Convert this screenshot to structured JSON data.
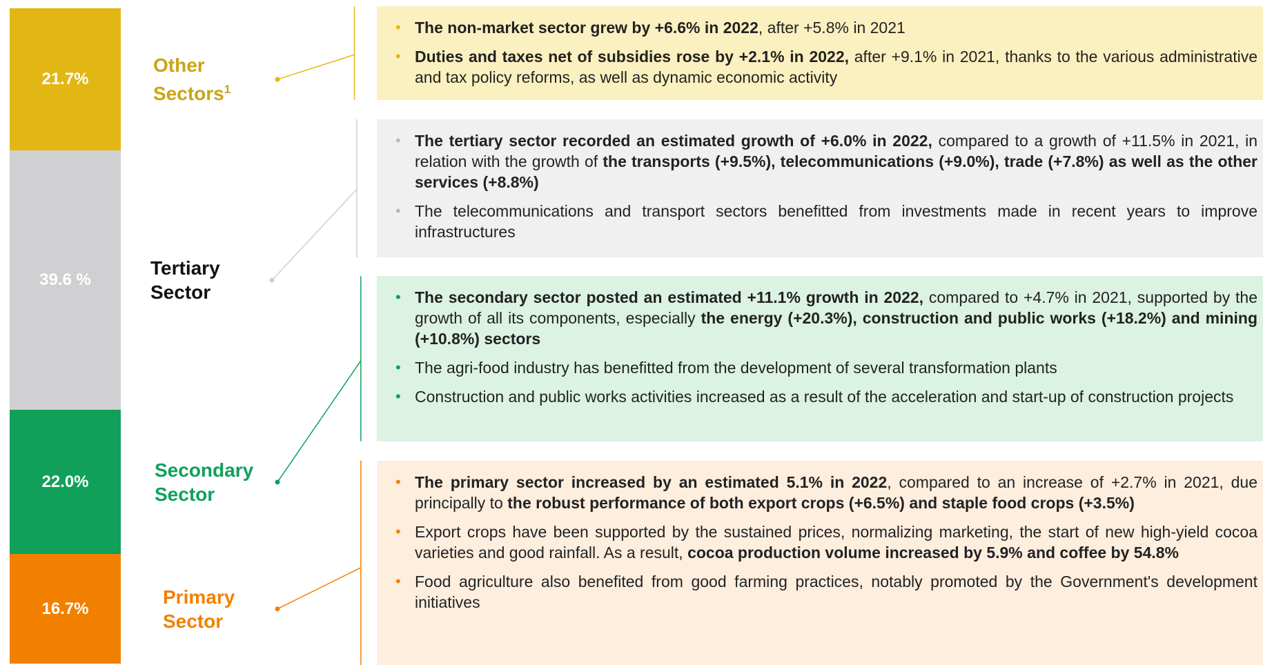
{
  "sectors": [
    {
      "name": "Other Sectors",
      "footnote": "1",
      "value": 21.7,
      "value_label": "21.7%",
      "color": "#e2b714",
      "label_color": "#c9a415",
      "panel_color": "#fbf0bf",
      "bullet_color": "#e2b714",
      "bullets": [
        [
          {
            "text": "The non-market sector grew by +6.6% in 2022",
            "bold": true
          },
          {
            "text": ", after +5.8% in 2021",
            "bold": false
          }
        ],
        [
          {
            "text": "Duties and taxes net of subsidies rose by +2.1% in 2022,",
            "bold": true
          },
          {
            "text": " after +9.1% in 2021, thanks to the various administrative and tax policy reforms, as well as dynamic economic activity",
            "bold": false
          }
        ]
      ]
    },
    {
      "name": "Tertiary Sector",
      "value": 39.6,
      "value_label": "39.6 %",
      "color": "#d0d0d2",
      "label_color": "#111111",
      "panel_color": "#f0f0f0",
      "bullet_color": "#b9b9b9",
      "bullets": [
        [
          {
            "text": "The tertiary sector recorded an estimated growth of +6.0% in 2022,",
            "bold": true
          },
          {
            "text": " compared to a growth of +11.5% in 2021, in relation with the growth of ",
            "bold": false
          },
          {
            "text": "the transports (+9.5%), telecommunications (+9.0%), trade (+7.8%) as well as the other services (+8.8%)",
            "bold": true
          }
        ],
        [
          {
            "text": "The telecommunications and transport sectors benefitted from investments made in recent years to improve infrastructures",
            "bold": false
          }
        ]
      ]
    },
    {
      "name": "Secondary Sector",
      "value": 22.0,
      "value_label": "22.0%",
      "color": "#10a05a",
      "label_color": "#10a05a",
      "panel_color": "#dcf3e4",
      "bullet_color": "#10a05a",
      "bullets": [
        [
          {
            "text": "The secondary sector posted an estimated +11.1% growth in 2022,",
            "bold": true
          },
          {
            "text": " compared to +4.7% in 2021, supported by the growth of all its components, especially ",
            "bold": false
          },
          {
            "text": "the energy (+20.3%), construction and public works (+18.2%) and mining (+10.8%) sectors",
            "bold": true
          }
        ],
        [
          {
            "text": "The agri-food industry has benefitted from the development of several transformation plants",
            "bold": false
          }
        ],
        [
          {
            "text": "Construction and public works activities increased as a result of the acceleration and start-up of construction projects",
            "bold": false
          }
        ]
      ]
    },
    {
      "name": "Primary Sector",
      "value": 16.7,
      "value_label": "16.7%",
      "color": "#f28000",
      "label_color": "#f28000",
      "panel_color": "#fdeede",
      "bullet_color": "#f28000",
      "bullets": [
        [
          {
            "text": "The primary sector increased by an estimated 5.1% in 2022",
            "bold": true
          },
          {
            "text": ", compared to an increase of +2.7% in 2021, due principally to ",
            "bold": false
          },
          {
            "text": "the robust performance of both export crops (+6.5%) and staple food crops (+3.5%)",
            "bold": true
          }
        ],
        [
          {
            "text": "Export crops have been supported by the sustained prices, normalizing marketing, the start of new high-yield cocoa varieties and good rainfall. As a result, ",
            "bold": false
          },
          {
            "text": "cocoa production volume increased by 5.9% and coffee by 54.8%",
            "bold": true
          }
        ],
        [
          {
            "text": "Food agriculture also benefited from good farming practices, notably promoted by the Government's development initiatives",
            "bold": false
          }
        ]
      ]
    }
  ]
}
